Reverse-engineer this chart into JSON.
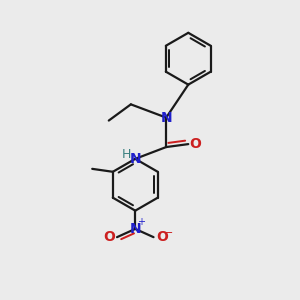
{
  "background_color": "#ebebeb",
  "bond_color": "#1a1a1a",
  "nitrogen_color": "#2020cc",
  "oxygen_color": "#cc2020",
  "hydrogen_color": "#3a8080",
  "line_width": 1.6,
  "figsize": [
    3.0,
    3.0
  ],
  "dpi": 100,
  "xlim": [
    0,
    10
  ],
  "ylim": [
    0,
    10
  ]
}
